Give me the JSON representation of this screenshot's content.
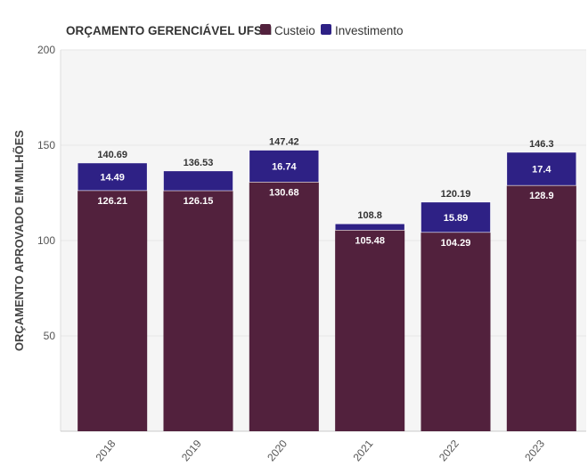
{
  "chart_data": {
    "type": "bar",
    "stacked": true,
    "title": "ORÇAMENTO GERENCIÁVEL UFSM",
    "ylabel": "ORÇAMENTO APROVADO EM MILHÕES",
    "xlabel": "",
    "categories": [
      "2018",
      "2019",
      "2020",
      "2021",
      "2022",
      "2023"
    ],
    "series": [
      {
        "name": "Custeio",
        "color": "#52213d",
        "values": [
          126.21,
          126.15,
          130.68,
          105.48,
          104.29,
          128.9
        ]
      },
      {
        "name": "Investimento",
        "color": "#2e2185",
        "values": [
          14.49,
          10.38,
          16.74,
          3.32,
          15.89,
          17.4
        ],
        "labels": [
          "14.49",
          "",
          "16.74",
          "",
          "15.89",
          "17.4"
        ]
      }
    ],
    "totals": [
      "140.69",
      "136.53",
      "147.42",
      "108.8",
      "120.19",
      "146.3"
    ],
    "custeio_labels": [
      "126.21",
      "126.15",
      "130.68",
      "105.48",
      "104.29",
      "128.9"
    ],
    "yticks": [
      "50",
      "100",
      "150",
      "200"
    ],
    "ylim": [
      0,
      200
    ],
    "grid": true,
    "legend": "top-left"
  }
}
